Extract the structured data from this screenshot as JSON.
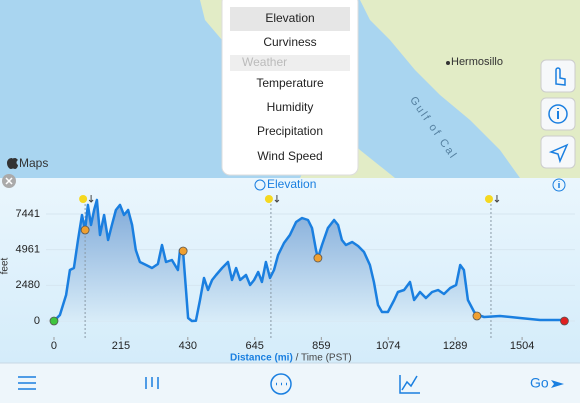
{
  "brand": "Maps",
  "map": {
    "labels": [
      "Hermosillo",
      "Gulf of Cal"
    ]
  },
  "menu": {
    "items": [
      "Elevation",
      "Curviness"
    ],
    "section": "Weather",
    "section_items": [
      "Temperature",
      "Humidity",
      "Precipitation",
      "Wind Speed"
    ]
  },
  "panel": {
    "title": "Elevation"
  },
  "toolbar": {
    "go": "Go"
  },
  "chart_data": {
    "type": "line",
    "y_label": "feet",
    "x_label": "Distance (mi)",
    "x_label_extra": " / Time (PST)",
    "color": "#1a7fe0",
    "grid": true,
    "x": [
      0,
      19,
      39,
      51,
      64,
      77,
      90,
      100,
      109,
      119,
      129,
      138,
      148,
      161,
      174,
      186,
      199,
      212,
      225,
      238,
      251,
      263,
      276,
      296,
      315,
      334,
      347,
      360,
      379,
      398,
      405,
      415,
      424,
      431,
      443,
      456,
      469,
      482,
      495,
      508,
      521,
      540,
      559,
      572,
      585,
      598,
      617,
      630,
      643,
      656,
      668,
      681,
      694,
      707,
      720,
      739,
      758,
      778,
      797,
      816,
      829,
      842,
      848,
      861,
      880,
      900,
      913,
      925,
      938,
      958,
      977,
      996,
      1015,
      1028,
      1041,
      1054,
      1073,
      1093,
      1105,
      1125,
      1144,
      1157,
      1176,
      1195,
      1215,
      1234,
      1253,
      1273,
      1292,
      1305,
      1317,
      1330,
      1350,
      1362,
      1382,
      1433,
      1497,
      1562,
      1645
    ],
    "values": [
      0,
      417,
      1808,
      3545,
      3685,
      5632,
      7371,
      6325,
      8067,
      6673,
      7719,
      8415,
      5977,
      7371,
      5632,
      6673,
      7719,
      8067,
      7371,
      7719,
      6673,
      4935,
      4101,
      3893,
      3685,
      3962,
      5284,
      4101,
      4240,
      3545,
      4935,
      4796,
      2155,
      209,
      0,
      20,
      1460,
      2990,
      2155,
      2850,
      3197,
      3685,
      4101,
      2850,
      3685,
      2850,
      3197,
      2503,
      2850,
      3405,
      2711,
      4101,
      2990,
      3545,
      4587,
      5423,
      5977,
      6881,
      7160,
      7020,
      6463,
      4935,
      4378,
      5284,
      6463,
      7020,
      6673,
      5632,
      5284,
      5493,
      5214,
      4796,
      3893,
      2711,
      1112,
      626,
      626,
      1460,
      2016,
      2155,
      2711,
      1460,
      2016,
      1599,
      2016,
      2155,
      1877,
      2294,
      2503,
      3893,
      3545,
      1460,
      626,
      417,
      278,
      348,
      209,
      70,
      70
    ],
    "points": [
      {
        "x": 0,
        "y": 0,
        "color": "#3ec43e"
      },
      {
        "x": 100,
        "y": 6325,
        "color": "#f0a030"
      },
      {
        "x": 415,
        "y": 4866,
        "color": "#f0a030"
      },
      {
        "x": 848,
        "y": 4378,
        "color": "#f0a030"
      },
      {
        "x": 1359,
        "y": 348,
        "color": "#f0a030"
      },
      {
        "x": 1640,
        "y": 0,
        "color": "#e02020"
      }
    ],
    "weather_markers": [
      100,
      697,
      1404
    ],
    "xlim": [
      -61,
      1674
    ],
    "ylim": [
      -1320,
      8550
    ],
    "xticks": [
      0,
      215,
      430,
      645,
      859,
      1074,
      1289,
      1504
    ],
    "yticks": [
      0,
      2480,
      4961,
      7441
    ]
  }
}
